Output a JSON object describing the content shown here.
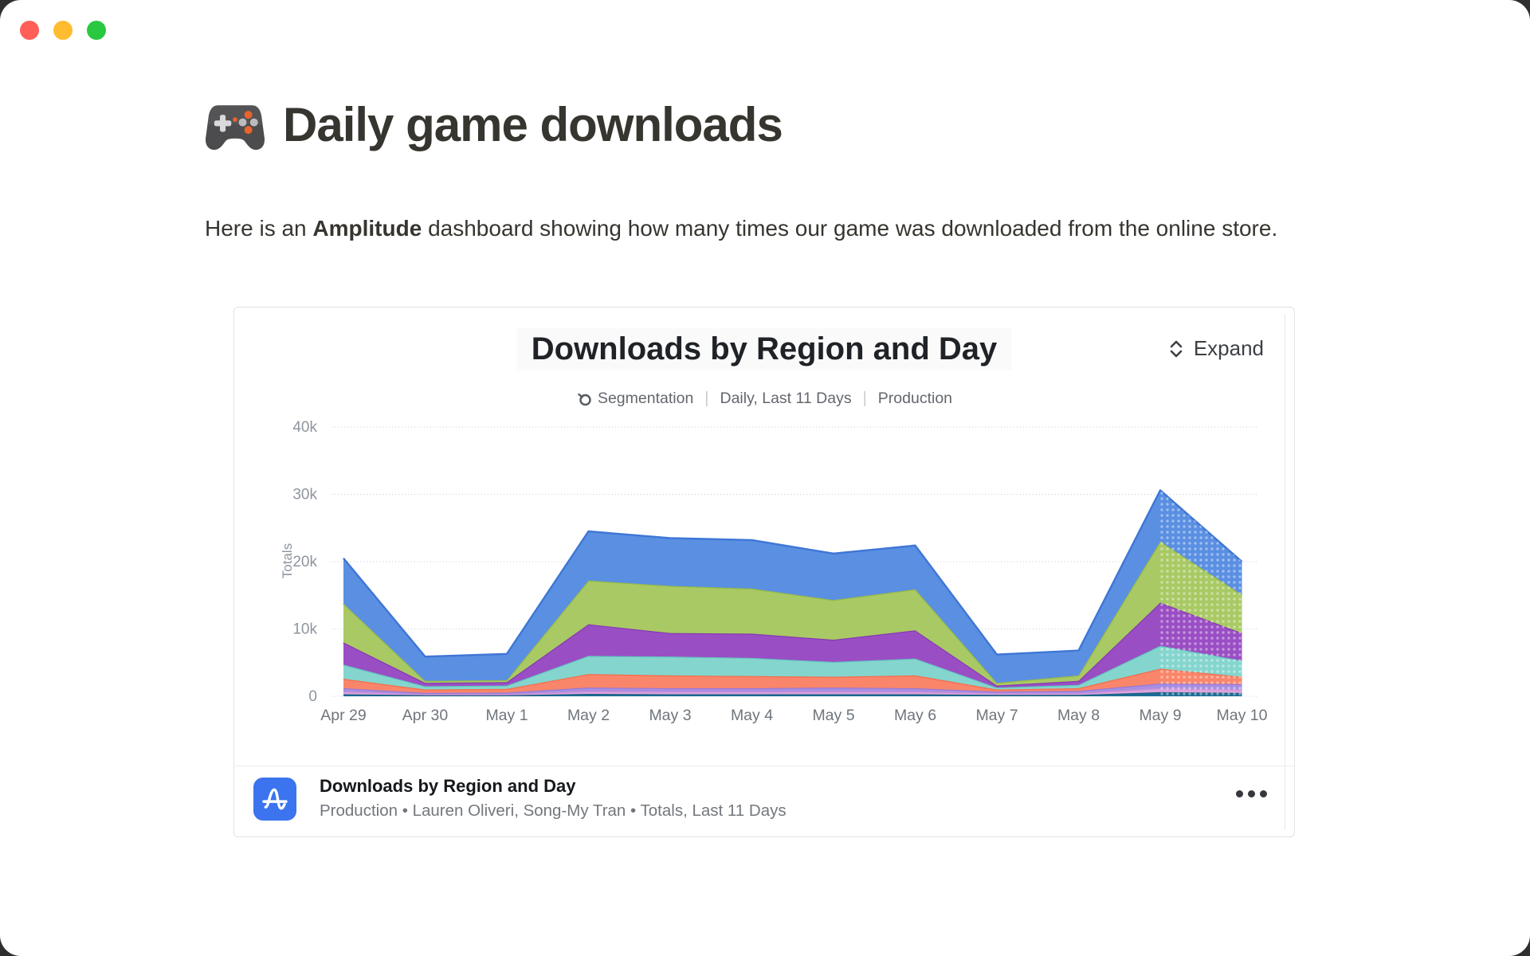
{
  "window": {
    "traffic_light_colors": {
      "close": "#ff5f57",
      "minimize": "#febc2e",
      "zoom": "#28c840"
    }
  },
  "page": {
    "title_emoji": "🎮",
    "title": "Daily game downloads",
    "intro_prefix": "Here is an ",
    "intro_bold": "Amplitude",
    "intro_suffix": " dashboard showing how many times our game was downloaded from the online store."
  },
  "chart_card": {
    "title": "Downloads by Region and Day",
    "expand_label": "Expand",
    "meta": {
      "segmentation_label": "Segmentation",
      "range_label": "Daily, Last 11 Days",
      "env_label": "Production",
      "separator": "|"
    },
    "footer": {
      "title": "Downloads by Region and Day",
      "subtitle": "Production • Lauren Oliveri, Song-My Tran • Totals, Last 11 Days"
    }
  },
  "chart_data": {
    "type": "area",
    "stacked": true,
    "title": "Downloads by Region and Day",
    "ylabel": "Totals",
    "xlabel": "",
    "ylim": [
      0,
      40000
    ],
    "yticks": [
      "0",
      "10k",
      "20k",
      "30k",
      "40k"
    ],
    "grid": "dotted horizontal",
    "legend_position": "none",
    "projected_segment": [
      "May 9",
      "May 10"
    ],
    "categories": [
      "Apr 29",
      "Apr 30",
      "May 1",
      "May 2",
      "May 3",
      "May 4",
      "May 5",
      "May 6",
      "May 7",
      "May 8",
      "May 9",
      "May 10"
    ],
    "series": [
      {
        "name": "series-1-steel-blue",
        "color": "#1d6d96",
        "line": "#16607f",
        "values": [
          300,
          150,
          150,
          350,
          300,
          300,
          300,
          300,
          200,
          200,
          600,
          500
        ]
      },
      {
        "name": "series-2-plum",
        "color": "#dba3de",
        "line": "#cf8fd4",
        "values": [
          400,
          150,
          150,
          400,
          400,
          400,
          400,
          400,
          250,
          250,
          600,
          500
        ]
      },
      {
        "name": "series-3-periwinkle",
        "color": "#a78ee3",
        "line": "#9678d8",
        "values": [
          500,
          200,
          250,
          550,
          500,
          500,
          600,
          500,
          250,
          350,
          700,
          800
        ]
      },
      {
        "name": "series-4-salmon",
        "color": "#f9866a",
        "line": "#f76a48",
        "values": [
          1400,
          500,
          550,
          2000,
          1900,
          1800,
          1600,
          1900,
          300,
          400,
          2200,
          1100
        ]
      },
      {
        "name": "series-5-teal",
        "color": "#84d5ce",
        "line": "#62c6bd",
        "values": [
          2100,
          500,
          500,
          2700,
          2800,
          2700,
          2200,
          2500,
          300,
          500,
          3400,
          2400
        ]
      },
      {
        "name": "series-6-purple",
        "color": "#9a4ec4",
        "line": "#8637b3",
        "values": [
          3300,
          500,
          500,
          4700,
          3500,
          3600,
          3300,
          4200,
          300,
          600,
          6400,
          4100
        ]
      },
      {
        "name": "series-7-green",
        "color": "#a9c964",
        "line": "#97ba45",
        "values": [
          5800,
          300,
          300,
          6500,
          7000,
          6700,
          5900,
          6100,
          400,
          800,
          9100,
          5700
        ]
      },
      {
        "name": "series-8-blue",
        "color": "#5a8fe2",
        "line": "#3f76d6",
        "values": [
          6700,
          3600,
          3900,
          7300,
          7100,
          7200,
          6900,
          6500,
          4200,
          3700,
          7600,
          4900
        ]
      }
    ],
    "totals": [
      20500,
      5900,
      6300,
      24500,
      23500,
      23200,
      21200,
      22400,
      6200,
      6800,
      30600,
      20000
    ]
  }
}
